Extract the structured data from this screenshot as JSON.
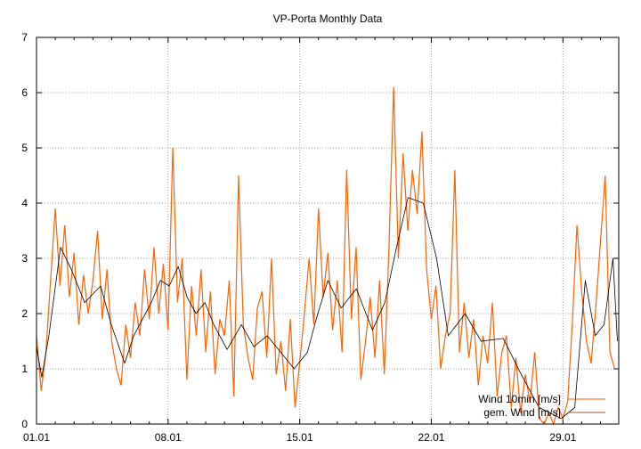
{
  "chart_data": {
    "type": "line",
    "title": "VP-Porta Monthly Data",
    "xlabel": "",
    "ylabel": "",
    "xlim_days": [
      0,
      30.97
    ],
    "ylim": [
      0,
      7
    ],
    "grid": true,
    "legend_position": "bottom-right",
    "x_ticks": [
      {
        "day": 0,
        "label": "01.01"
      },
      {
        "day": 7,
        "label": "08.01"
      },
      {
        "day": 14,
        "label": "15.01"
      },
      {
        "day": 21,
        "label": "22.01"
      },
      {
        "day": 28,
        "label": "29.01"
      }
    ],
    "y_ticks": [
      "0",
      "1",
      "2",
      "3",
      "4",
      "5",
      "6",
      "7"
    ],
    "series": [
      {
        "name": "Wind 10min [m/s]",
        "color": "#ff6000",
        "x_step_days": 0.25,
        "values": [
          1.6,
          0.6,
          1.3,
          2.6,
          3.9,
          2.5,
          3.6,
          2.3,
          3.1,
          1.8,
          2.7,
          2.0,
          2.6,
          3.5,
          1.9,
          2.8,
          1.5,
          1.0,
          0.7,
          1.8,
          1.2,
          2.2,
          1.6,
          2.8,
          1.9,
          3.2,
          2.0,
          2.9,
          1.7,
          5.0,
          2.2,
          3.0,
          0.8,
          2.5,
          1.6,
          2.8,
          1.3,
          2.4,
          0.9,
          1.9,
          1.6,
          2.6,
          0.5,
          4.5,
          1.8,
          1.2,
          0.8,
          2.1,
          2.4,
          1.2,
          3.0,
          0.9,
          1.5,
          0.6,
          1.9,
          0.3,
          1.1,
          2.0,
          3.0,
          1.8,
          3.9,
          2.3,
          3.1,
          1.7,
          2.6,
          1.3,
          4.6,
          1.9,
          3.2,
          0.8,
          1.5,
          2.3,
          1.2,
          2.6,
          0.9,
          3.2,
          6.1,
          3.0,
          4.9,
          3.5,
          4.6,
          3.8,
          5.3,
          2.8,
          1.9,
          2.5,
          1.0,
          1.6,
          2.0,
          4.6,
          1.3,
          2.2,
          1.2,
          1.9,
          0.7,
          1.6,
          1.1,
          2.2,
          0.5,
          1.3,
          1.6,
          0.3,
          1.2,
          0.2,
          0.9,
          0.4,
          1.3,
          0.1,
          0.0,
          0.2,
          0.0,
          0.3,
          0.1,
          0.4,
          1.8,
          3.6,
          2.4,
          1.5,
          1.1,
          2.1,
          3.3,
          4.5,
          1.3,
          1.0
        ]
      },
      {
        "name": "gem. Wind [m/s]",
        "color": "#000000",
        "legend_color": "#a0522d",
        "x_days": [
          0,
          0.28,
          0.66,
          1.28,
          1.85,
          2.56,
          3.41,
          3.98,
          4.69,
          5.17,
          5.64,
          6.11,
          6.59,
          7.06,
          7.54,
          8.01,
          8.48,
          8.96,
          9.43,
          10.14,
          10.9,
          11.56,
          12.27,
          12.99,
          13.7,
          14.41,
          14.88,
          15.5,
          16.21,
          17.01,
          17.87,
          18.53,
          19.15,
          19.76,
          20.57,
          21.28,
          21.9,
          22.8,
          23.65,
          24.83,
          25.78,
          26.73,
          27.91,
          28.63,
          29.19,
          29.72,
          30.19,
          30.66,
          30.9
        ],
        "values": [
          1.4,
          0.85,
          1.6,
          3.2,
          2.8,
          2.2,
          2.5,
          1.8,
          1.1,
          1.6,
          1.9,
          2.2,
          2.6,
          2.5,
          2.85,
          2.3,
          2.0,
          2.2,
          1.8,
          1.35,
          1.8,
          1.4,
          1.6,
          1.3,
          1.0,
          1.3,
          1.9,
          2.6,
          2.1,
          2.45,
          1.7,
          2.2,
          3.2,
          4.1,
          4.0,
          3.0,
          1.6,
          2.0,
          1.5,
          1.55,
          0.9,
          0.3,
          0.1,
          0.3,
          2.6,
          1.6,
          1.8,
          3.0,
          1.5
        ]
      }
    ]
  }
}
